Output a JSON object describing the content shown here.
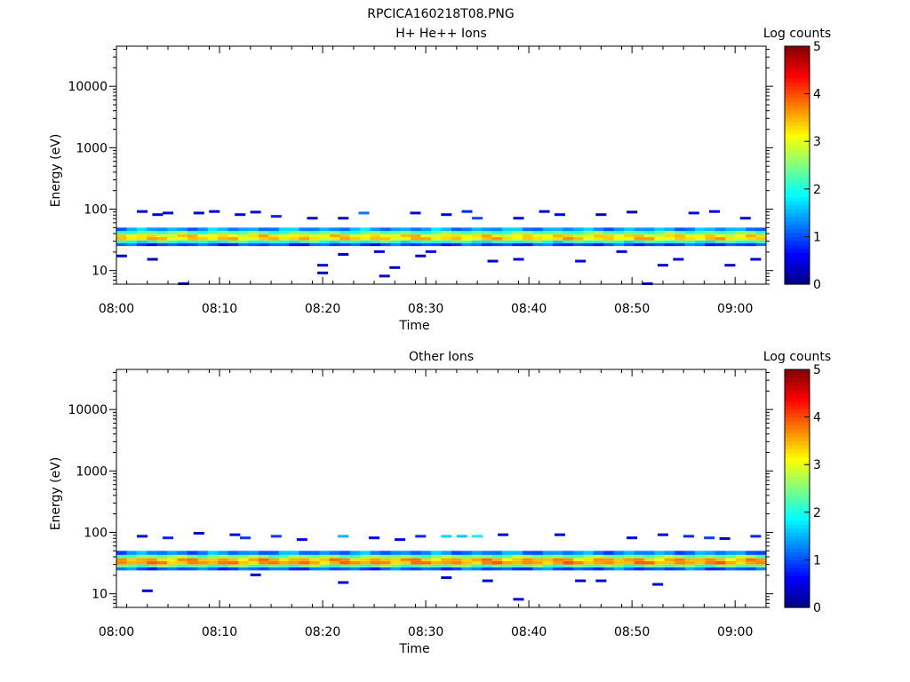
{
  "figure": {
    "title": "RPCICA160218T08.PNG"
  },
  "colorscale": {
    "stops": [
      "#00007f",
      "#0000ff",
      "#007fff",
      "#00ffff",
      "#7fff7f",
      "#ffff00",
      "#ff7f00",
      "#ff0000",
      "#7f0000"
    ]
  },
  "chart_data": [
    {
      "type": "heatmap",
      "title": "H+ He++ Ions",
      "xlabel": "Time",
      "ylabel": "Energy (eV)",
      "x_ticks": [
        "08:00",
        "08:10",
        "08:20",
        "08:30",
        "08:40",
        "08:50",
        "09:00"
      ],
      "x_range_min": [
        1,
        64
      ],
      "y_scale": "log",
      "y_range": [
        6,
        45000
      ],
      "y_ticks": [
        10,
        100,
        1000,
        10000
      ],
      "y_tick_labels": [
        "10",
        "100",
        "1000",
        "10000"
      ],
      "colorbar": {
        "label": "Log counts",
        "range": [
          0,
          5
        ],
        "ticks": [
          "0",
          "1",
          "2",
          "3",
          "4",
          "5"
        ]
      },
      "band": {
        "rows": [
          {
            "energy": [
              25,
              28
            ],
            "level": 1.0
          },
          {
            "energy": [
              28,
              31
            ],
            "level": 2.0
          },
          {
            "energy": [
              31,
              35
            ],
            "level": 3.3
          },
          {
            "energy": [
              35,
              39
            ],
            "level": 3.2
          },
          {
            "energy": [
              39,
              44
            ],
            "level": 2.3
          },
          {
            "energy": [
              44,
              50
            ],
            "level": 1.4
          }
        ]
      },
      "sparse_cells": [
        {
          "t": 1.5,
          "e": 17,
          "level": 0.4
        },
        {
          "t": 3.5,
          "e": 90,
          "level": 0.5
        },
        {
          "t": 4.5,
          "e": 15,
          "level": 0.3
        },
        {
          "t": 5.0,
          "e": 80,
          "level": 0.4
        },
        {
          "t": 6.0,
          "e": 85,
          "level": 0.5
        },
        {
          "t": 7.5,
          "e": 6,
          "level": 0.3
        },
        {
          "t": 9.0,
          "e": 85,
          "level": 0.4
        },
        {
          "t": 10.5,
          "e": 90,
          "level": 0.5
        },
        {
          "t": 13.0,
          "e": 80,
          "level": 0.6
        },
        {
          "t": 14.5,
          "e": 88,
          "level": 0.5
        },
        {
          "t": 16.5,
          "e": 75,
          "level": 0.8
        },
        {
          "t": 20.0,
          "e": 70,
          "level": 0.4
        },
        {
          "t": 21.0,
          "e": 12,
          "level": 0.5
        },
        {
          "t": 21.0,
          "e": 9,
          "level": 0.4
        },
        {
          "t": 23.0,
          "e": 70,
          "level": 0.3
        },
        {
          "t": 23.0,
          "e": 18,
          "level": 0.4
        },
        {
          "t": 25.0,
          "e": 85,
          "level": 1.2
        },
        {
          "t": 26.5,
          "e": 20,
          "level": 0.5
        },
        {
          "t": 27.0,
          "e": 8,
          "level": 0.4
        },
        {
          "t": 28.0,
          "e": 11,
          "level": 0.3
        },
        {
          "t": 30.0,
          "e": 85,
          "level": 0.5
        },
        {
          "t": 30.5,
          "e": 17,
          "level": 0.4
        },
        {
          "t": 31.5,
          "e": 20,
          "level": 0.6
        },
        {
          "t": 33.0,
          "e": 80,
          "level": 0.5
        },
        {
          "t": 35.0,
          "e": 90,
          "level": 0.8
        },
        {
          "t": 36.0,
          "e": 70,
          "level": 1.0
        },
        {
          "t": 37.5,
          "e": 14,
          "level": 0.4
        },
        {
          "t": 40.0,
          "e": 15,
          "level": 0.5
        },
        {
          "t": 40.0,
          "e": 70,
          "level": 0.5
        },
        {
          "t": 42.5,
          "e": 90,
          "level": 0.4
        },
        {
          "t": 44.0,
          "e": 80,
          "level": 0.6
        },
        {
          "t": 46.0,
          "e": 14,
          "level": 0.5
        },
        {
          "t": 48.0,
          "e": 80,
          "level": 0.4
        },
        {
          "t": 50.0,
          "e": 20,
          "level": 0.4
        },
        {
          "t": 51.0,
          "e": 88,
          "level": 0.3
        },
        {
          "t": 52.5,
          "e": 6,
          "level": 0.5
        },
        {
          "t": 54.0,
          "e": 12,
          "level": 0.4
        },
        {
          "t": 55.5,
          "e": 15,
          "level": 0.5
        },
        {
          "t": 57.0,
          "e": 85,
          "level": 0.6
        },
        {
          "t": 59.0,
          "e": 90,
          "level": 0.5
        },
        {
          "t": 60.5,
          "e": 12,
          "level": 0.4
        },
        {
          "t": 62.0,
          "e": 70,
          "level": 0.5
        },
        {
          "t": 63.0,
          "e": 15,
          "level": 0.4
        }
      ]
    },
    {
      "type": "heatmap",
      "title": "Other Ions",
      "xlabel": "Time",
      "ylabel": "Energy (eV)",
      "x_ticks": [
        "08:00",
        "08:10",
        "08:20",
        "08:30",
        "08:40",
        "08:50",
        "09:00"
      ],
      "x_range_min": [
        1,
        64
      ],
      "y_scale": "log",
      "y_range": [
        6,
        45000
      ],
      "y_ticks": [
        10,
        100,
        1000,
        10000
      ],
      "y_tick_labels": [
        "10",
        "100",
        "1000",
        "10000"
      ],
      "colorbar": {
        "label": "Log counts",
        "range": [
          0,
          5
        ],
        "ticks": [
          "0",
          "1",
          "2",
          "3",
          "4",
          "5"
        ]
      },
      "band": {
        "rows": [
          {
            "energy": [
              24,
              27
            ],
            "level": 1.1
          },
          {
            "energy": [
              27,
              30
            ],
            "level": 2.3
          },
          {
            "energy": [
              30,
              34
            ],
            "level": 3.6
          },
          {
            "energy": [
              34,
              38
            ],
            "level": 3.5
          },
          {
            "energy": [
              38,
              43
            ],
            "level": 2.5
          },
          {
            "energy": [
              43,
              50
            ],
            "level": 1.3
          }
        ]
      },
      "sparse_cells": [
        {
          "t": 3.5,
          "e": 85,
          "level": 0.5
        },
        {
          "t": 4.0,
          "e": 11,
          "level": 0.4
        },
        {
          "t": 6.0,
          "e": 80,
          "level": 0.8
        },
        {
          "t": 9.0,
          "e": 95,
          "level": 0.3
        },
        {
          "t": 12.5,
          "e": 90,
          "level": 0.4
        },
        {
          "t": 13.5,
          "e": 80,
          "level": 0.9
        },
        {
          "t": 14.5,
          "e": 20,
          "level": 0.4
        },
        {
          "t": 16.5,
          "e": 85,
          "level": 0.9
        },
        {
          "t": 19.0,
          "e": 75,
          "level": 0.5
        },
        {
          "t": 23.0,
          "e": 85,
          "level": 1.5
        },
        {
          "t": 23.0,
          "e": 15,
          "level": 0.4
        },
        {
          "t": 26.0,
          "e": 80,
          "level": 0.6
        },
        {
          "t": 28.5,
          "e": 75,
          "level": 0.5
        },
        {
          "t": 30.5,
          "e": 85,
          "level": 0.8
        },
        {
          "t": 33.0,
          "e": 85,
          "level": 1.7
        },
        {
          "t": 33.0,
          "e": 18,
          "level": 0.4
        },
        {
          "t": 34.5,
          "e": 85,
          "level": 1.6
        },
        {
          "t": 36.0,
          "e": 85,
          "level": 1.8
        },
        {
          "t": 37.0,
          "e": 16,
          "level": 0.4
        },
        {
          "t": 38.5,
          "e": 90,
          "level": 0.4
        },
        {
          "t": 40.0,
          "e": 8,
          "level": 0.5
        },
        {
          "t": 44.0,
          "e": 90,
          "level": 0.4
        },
        {
          "t": 46.0,
          "e": 16,
          "level": 0.4
        },
        {
          "t": 48.0,
          "e": 16,
          "level": 0.4
        },
        {
          "t": 51.0,
          "e": 80,
          "level": 0.5
        },
        {
          "t": 53.5,
          "e": 14,
          "level": 0.4
        },
        {
          "t": 54.0,
          "e": 90,
          "level": 0.5
        },
        {
          "t": 56.5,
          "e": 85,
          "level": 0.8
        },
        {
          "t": 58.5,
          "e": 80,
          "level": 0.9
        },
        {
          "t": 60.0,
          "e": 78,
          "level": 0.4
        },
        {
          "t": 63.0,
          "e": 85,
          "level": 0.8
        }
      ]
    }
  ]
}
